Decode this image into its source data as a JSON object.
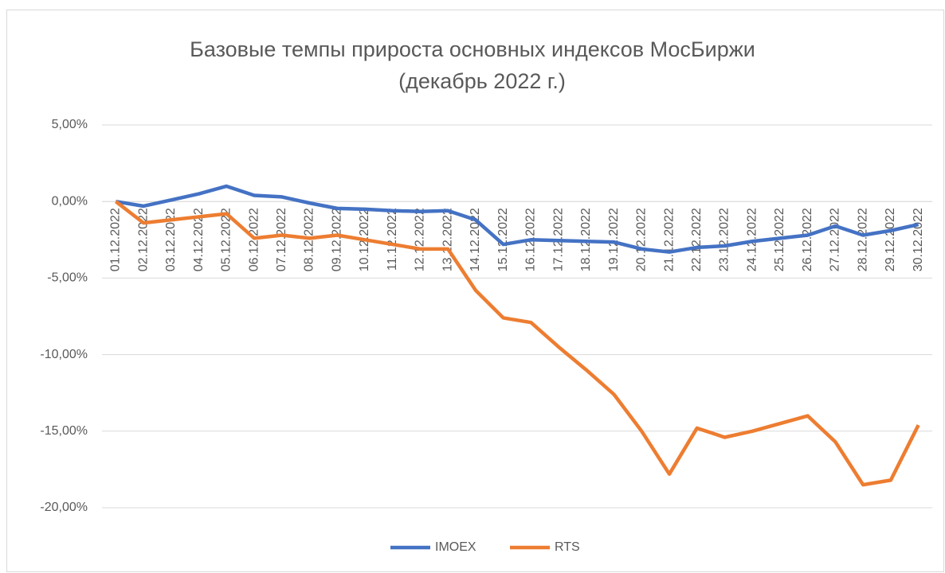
{
  "chart_data": {
    "type": "line",
    "title": [
      "Базовые темпы прироста основных индексов МосБиржи",
      "(декабрь 2022 г.)"
    ],
    "categories": [
      "01.12.2022",
      "02.12.2022",
      "03.12.2022",
      "04.12.2022",
      "05.12.2022",
      "06.12.2022",
      "07.12.2022",
      "08.12.2022",
      "09.12.2022",
      "10.12.2022",
      "11.12.2022",
      "12.12.2022",
      "13.12.2022",
      "14.12.2022",
      "15.12.2022",
      "16.12.2022",
      "17.12.2022",
      "18.12.2022",
      "19.12.2022",
      "20.12.2022",
      "21.12.2022",
      "22.12.2022",
      "23.12.2022",
      "24.12.2022",
      "25.12.2022",
      "26.12.2022",
      "27.12.2022",
      "28.12.2022",
      "29.12.2022",
      "30.12.2022"
    ],
    "series": [
      {
        "name": "IMOEX",
        "color": "#4472c4",
        "values": [
          0,
          -0.3,
          0.1,
          0.5,
          1.0,
          0.4,
          0.3,
          -0.1,
          -0.45,
          -0.5,
          -0.6,
          -0.65,
          -0.6,
          -1.2,
          -2.8,
          -2.5,
          -2.55,
          -2.6,
          -2.65,
          -3.1,
          -3.3,
          -3.0,
          -2.9,
          -2.6,
          -2.4,
          -2.2,
          -1.6,
          -2.2,
          -1.9,
          -1.5
        ]
      },
      {
        "name": "RTS",
        "color": "#ed7d31",
        "values": [
          0,
          -1.4,
          -1.2,
          -1.0,
          -0.8,
          -2.4,
          -2.2,
          -2.4,
          -2.2,
          -2.5,
          -2.8,
          -3.1,
          -3.1,
          -5.8,
          -7.6,
          -7.9,
          -9.5,
          -11.0,
          -12.6,
          -15.0,
          -17.8,
          -14.8,
          -15.4,
          -15.0,
          -14.5,
          -14.0,
          -15.7,
          -18.5,
          -18.2,
          -14.6
        ]
      }
    ],
    "ylim": [
      -20,
      5
    ],
    "yticks": [
      {
        "value": -20,
        "label": "-20,00%"
      },
      {
        "value": -15,
        "label": "-15,00%"
      },
      {
        "value": -10,
        "label": "-10,00%"
      },
      {
        "value": -5,
        "label": "-5,00%"
      },
      {
        "value": 0,
        "label": "0,00%"
      },
      {
        "value": 5,
        "label": "5,00%"
      }
    ],
    "grid": true,
    "legend": "bottom"
  }
}
